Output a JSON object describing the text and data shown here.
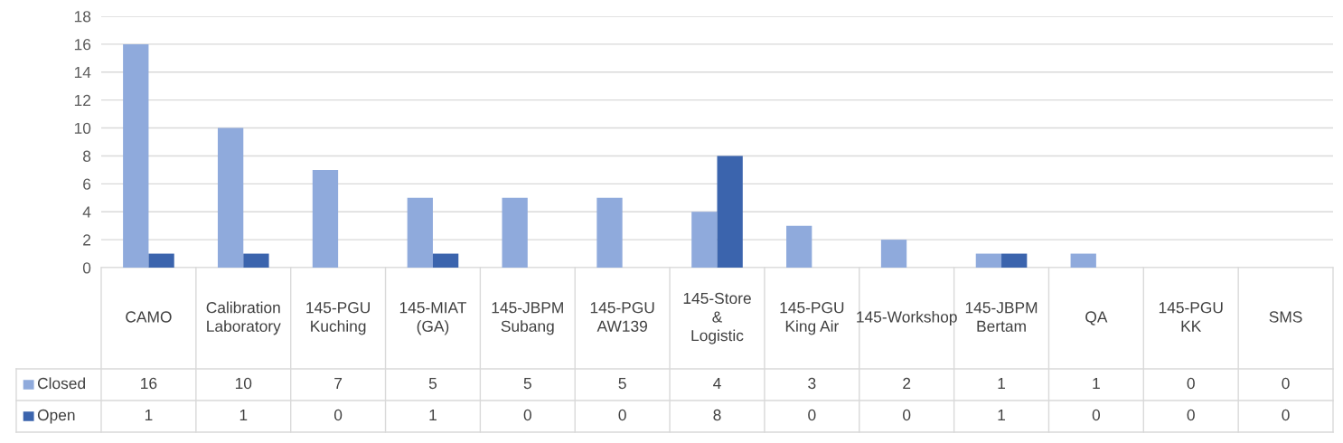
{
  "chart_data": {
    "type": "bar",
    "categories": [
      "CAMO",
      "Calibration Laboratory",
      "145-PGU Kuching",
      "145-MIAT (GA)",
      "145-JBPM Subang",
      "145-PGU AW139",
      "145-Store & Logistic",
      "145-PGU King Air",
      "145-Workshop",
      "145-JBPM Bertam",
      "QA",
      "145-PGU KK",
      "SMS"
    ],
    "series": [
      {
        "name": "Closed",
        "color": "#8faadc",
        "values": [
          16,
          10,
          7,
          5,
          5,
          5,
          4,
          3,
          2,
          1,
          1,
          0,
          0
        ]
      },
      {
        "name": "Open",
        "color": "#3b64ad",
        "values": [
          1,
          1,
          0,
          1,
          0,
          0,
          8,
          0,
          0,
          1,
          0,
          0,
          0
        ]
      }
    ],
    "ylim": [
      0,
      18
    ],
    "yticks": [
      0,
      2,
      4,
      6,
      8,
      10,
      12,
      14,
      16,
      18
    ],
    "grid": "y",
    "legend": "bottom",
    "data_labels": true
  }
}
